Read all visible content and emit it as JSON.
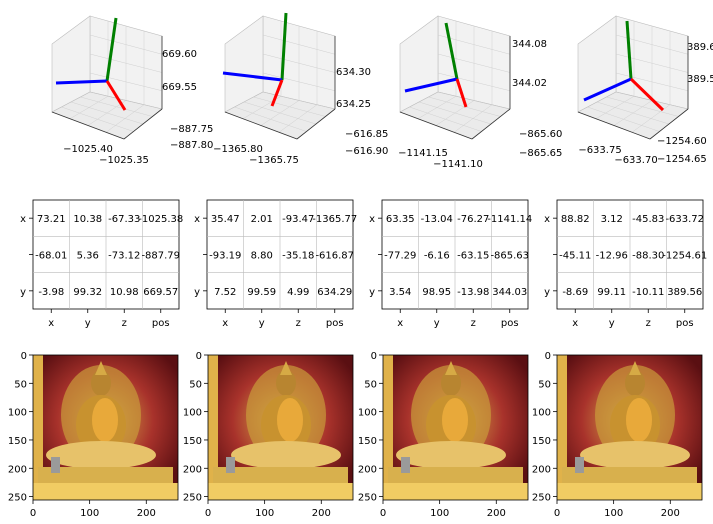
{
  "figure": {
    "layout": "3 rows x 4 columns",
    "background": "#ffffff"
  },
  "colors": {
    "axis_x": "#ff0000",
    "axis_y": "#008000",
    "axis_z": "#0000ff",
    "pane": "#f2f2f2",
    "grid": "#d0d0d0"
  },
  "chart_data": [
    {
      "type": "scatter",
      "kind": "3d-pose-axes",
      "col": 0,
      "tick_labels": {
        "x": [
          "−1025.40",
          "−1025.35"
        ],
        "y": [
          "−887.75",
          "−887.80"
        ],
        "z": [
          "669.60",
          "669.55"
        ]
      }
    },
    {
      "type": "scatter",
      "kind": "3d-pose-axes",
      "col": 1,
      "tick_labels": {
        "x": [
          "−1365.80",
          "−1365.75"
        ],
        "y": [
          "−616.85",
          "−616.90"
        ],
        "z": [
          "634.30",
          "634.25"
        ]
      }
    },
    {
      "type": "scatter",
      "kind": "3d-pose-axes",
      "col": 2,
      "tick_labels": {
        "x": [
          "−1141.15",
          "−1141.10"
        ],
        "y": [
          "−865.60",
          "−865.65"
        ],
        "z": [
          "344.08",
          "344.02"
        ]
      }
    },
    {
      "type": "scatter",
      "kind": "3d-pose-axes",
      "col": 3,
      "tick_labels": {
        "x": [
          "−633.75",
          "−633.70"
        ],
        "y": [
          "−1254.60",
          "−1254.65"
        ],
        "z": [
          "389.6",
          "389.5"
        ]
      }
    },
    {
      "type": "table",
      "col": 0,
      "columns": [
        "x",
        "y",
        "z",
        "pos"
      ],
      "rows": [
        "x",
        "",
        "y"
      ],
      "cells": [
        [
          "73.21",
          "10.38",
          "-67.33",
          "-1025.38"
        ],
        [
          "-68.01",
          "5.36",
          "-73.12",
          "-887.79"
        ],
        [
          "-3.98",
          "99.32",
          "10.98",
          "669.57"
        ]
      ]
    },
    {
      "type": "table",
      "col": 1,
      "columns": [
        "x",
        "y",
        "z",
        "pos"
      ],
      "rows": [
        "x",
        "",
        "y"
      ],
      "cells": [
        [
          "35.47",
          "2.01",
          "-93.47",
          "-1365.77"
        ],
        [
          "-93.19",
          "8.80",
          "-35.18",
          "-616.87"
        ],
        [
          "7.52",
          "99.59",
          "4.99",
          "634.29"
        ]
      ]
    },
    {
      "type": "table",
      "col": 2,
      "columns": [
        "x",
        "y",
        "z",
        "pos"
      ],
      "rows": [
        "x",
        "",
        "y"
      ],
      "cells": [
        [
          "63.35",
          "-13.04",
          "-76.27",
          "-1141.14"
        ],
        [
          "-77.29",
          "-6.16",
          "-63.15",
          "-865.63"
        ],
        [
          "3.54",
          "98.95",
          "-13.98",
          "344.03"
        ]
      ]
    },
    {
      "type": "table",
      "col": 3,
      "columns": [
        "x",
        "y",
        "z",
        "pos"
      ],
      "rows": [
        "x",
        "",
        "y"
      ],
      "cells": [
        [
          "88.82",
          "3.12",
          "-45.83",
          "-633.72"
        ],
        [
          "-45.11",
          "-12.96",
          "-88.30",
          "-1254.61"
        ],
        [
          "-8.69",
          "99.11",
          "-10.11",
          "389.56"
        ]
      ]
    },
    {
      "type": "heatmap",
      "kind": "image",
      "col": 0,
      "xticks": [
        "0",
        "100",
        "200"
      ],
      "yticks": [
        "0",
        "50",
        "100",
        "150",
        "200",
        "250"
      ],
      "xlim": [
        0,
        256
      ],
      "ylim": [
        256,
        0
      ]
    },
    {
      "type": "heatmap",
      "kind": "image",
      "col": 1,
      "xticks": [
        "0",
        "100",
        "200"
      ],
      "yticks": [
        "0",
        "50",
        "100",
        "150",
        "200",
        "250"
      ],
      "xlim": [
        0,
        256
      ],
      "ylim": [
        256,
        0
      ]
    },
    {
      "type": "heatmap",
      "kind": "image",
      "col": 2,
      "xticks": [
        "0",
        "100",
        "200"
      ],
      "yticks": [
        "0",
        "50",
        "100",
        "150",
        "200",
        "250"
      ],
      "xlim": [
        0,
        256
      ],
      "ylim": [
        256,
        0
      ]
    },
    {
      "type": "heatmap",
      "kind": "image",
      "col": 3,
      "xticks": [
        "0",
        "100",
        "200"
      ],
      "yticks": [
        "0",
        "50",
        "100",
        "150",
        "200",
        "250"
      ],
      "xlim": [
        0,
        256
      ],
      "ylim": [
        256,
        0
      ]
    }
  ]
}
